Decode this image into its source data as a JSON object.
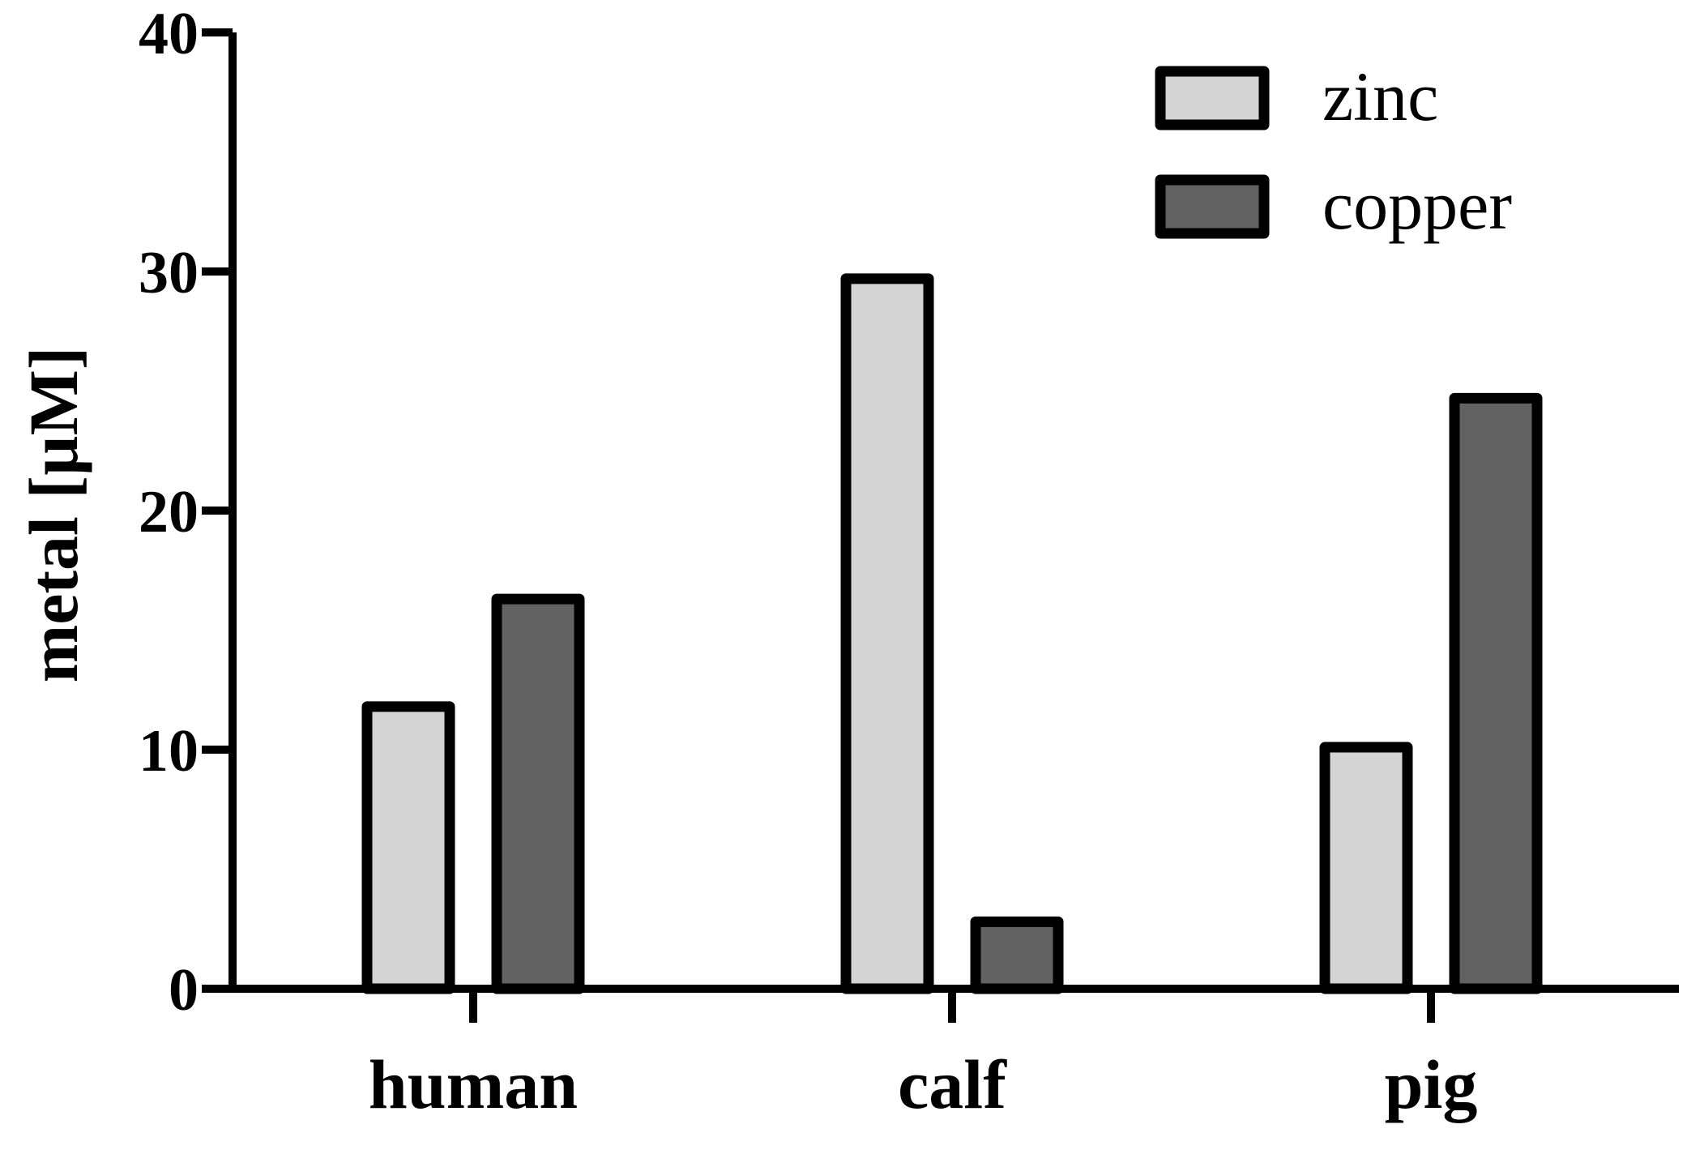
{
  "chart_data": {
    "type": "bar",
    "ylabel": "metal [µM]",
    "xlabel": "",
    "ylim": [
      0,
      40
    ],
    "yticks": [
      0,
      10,
      20,
      30,
      40
    ],
    "categories": [
      "human",
      "calf",
      "pig"
    ],
    "series": [
      {
        "name": "zinc",
        "color": "#d4d4d4",
        "values": [
          11.8,
          29.7,
          10.1
        ]
      },
      {
        "name": "copper",
        "color": "#626262",
        "values": [
          16.3,
          2.8,
          24.7
        ]
      }
    ],
    "legend": "top-right",
    "grid": false
  }
}
